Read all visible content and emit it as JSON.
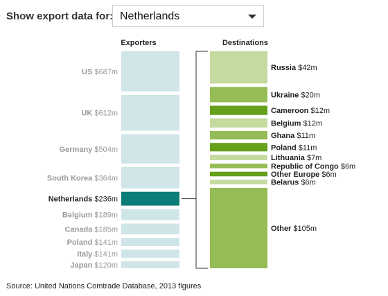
{
  "header": {
    "label": "Show export data for:",
    "selected_country": "Netherlands"
  },
  "source": "Source: United Nations Comtrade Database, 2013 figures",
  "colors": {
    "exporter_bar": "#cfe5e8",
    "exporter_selected": "#0b7d78",
    "exporter_label": "#999999",
    "dest_light": "#c5da9e",
    "dest_mid": "#95bc55",
    "dest_dark": "#64a01a",
    "bracket": "#333333"
  },
  "chart_data": {
    "type": "bar",
    "unit": "$m",
    "exporters_title": "Exporters",
    "destinations_title": "Destinations",
    "exporters": [
      {
        "name": "US",
        "value": 687
      },
      {
        "name": "UK",
        "value": 612
      },
      {
        "name": "Germany",
        "value": 504
      },
      {
        "name": "South Korea",
        "value": 364
      },
      {
        "name": "Netherlands",
        "value": 236,
        "selected": true
      },
      {
        "name": "Belgium",
        "value": 189
      },
      {
        "name": "Canada",
        "value": 185
      },
      {
        "name": "Poland",
        "value": 141
      },
      {
        "name": "Italy",
        "value": 141
      },
      {
        "name": "Japan",
        "value": 120
      }
    ],
    "destinations": [
      {
        "name": "Russia",
        "value": 42,
        "shade": "light"
      },
      {
        "name": "Ukraine",
        "value": 20,
        "shade": "mid"
      },
      {
        "name": "Cameroon",
        "value": 12,
        "shade": "dark"
      },
      {
        "name": "Belgium",
        "value": 12,
        "shade": "light"
      },
      {
        "name": "Ghana",
        "value": 11,
        "shade": "mid"
      },
      {
        "name": "Poland",
        "value": 11,
        "shade": "dark"
      },
      {
        "name": "Lithuania",
        "value": 7,
        "shade": "light"
      },
      {
        "name": "Republic of Congo",
        "value": 6,
        "shade": "mid"
      },
      {
        "name": "Other Europe",
        "value": 6,
        "shade": "dark"
      },
      {
        "name": "Belarus",
        "value": 6,
        "shade": "light"
      },
      {
        "name": "Other",
        "value": 105,
        "shade": "mid"
      }
    ]
  }
}
